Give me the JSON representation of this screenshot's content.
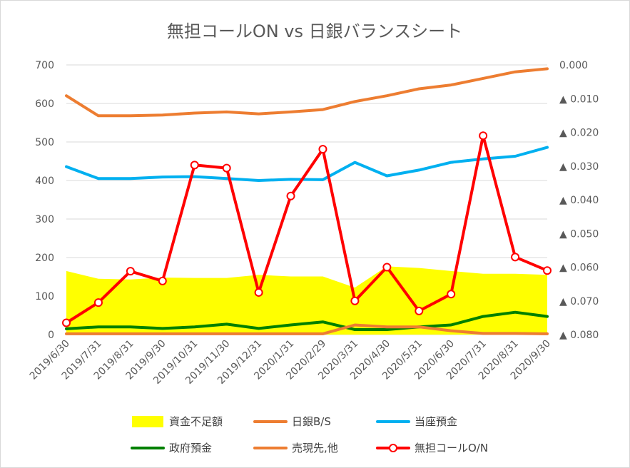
{
  "chart_data": {
    "type": "line",
    "title": "無担コールON  vs 日銀バランスシート",
    "categories": [
      "2019/6/30",
      "2019/7/31",
      "2019/8/31",
      "2019/9/30",
      "2019/10/31",
      "2019/11/30",
      "2019/12/31",
      "2020/1/31",
      "2020/2/29",
      "2020/3/31",
      "2020/4/30",
      "2020/5/31",
      "2020/6/30",
      "2020/7/31",
      "2020/8/31",
      "2020/9/30"
    ],
    "y_left": {
      "range": [
        0,
        700
      ],
      "ticks": [
        "0",
        "100",
        "200",
        "300",
        "400",
        "500",
        "600",
        "700"
      ]
    },
    "y_right": {
      "range": [
        0.0,
        -0.08
      ],
      "ticks": [
        "0.000",
        "▲ 0.010",
        "▲ 0.020",
        "▲ 0.030",
        "▲ 0.040",
        "▲ 0.050",
        "▲ 0.060",
        "▲ 0.070",
        "▲ 0.080"
      ]
    },
    "grid": true,
    "legend_position": "bottom",
    "series": [
      {
        "name": "資金不足額",
        "kind": "area",
        "axis": "left",
        "color": "#FFFF00",
        "values": [
          165,
          145,
          143,
          148,
          147,
          147,
          155,
          151,
          151,
          122,
          177,
          173,
          165,
          158,
          158,
          155
        ]
      },
      {
        "name": "日銀B/S",
        "kind": "line",
        "axis": "left",
        "color": "#ED7D31",
        "values": [
          620,
          568,
          568,
          570,
          575,
          578,
          573,
          578,
          584,
          605,
          620,
          638,
          648,
          665,
          682,
          690
        ]
      },
      {
        "name": "当座預金",
        "kind": "line",
        "axis": "left",
        "color": "#00B0F0",
        "values": [
          436,
          405,
          405,
          409,
          410,
          405,
          400,
          403,
          402,
          447,
          412,
          427,
          447,
          456,
          463,
          486
        ]
      },
      {
        "name": "政府預金",
        "kind": "line",
        "axis": "left",
        "color": "#008000",
        "values": [
          15,
          20,
          20,
          16,
          20,
          27,
          16,
          25,
          33,
          13,
          13,
          20,
          25,
          47,
          58,
          47
        ]
      },
      {
        "name": "売現先,他",
        "kind": "line",
        "axis": "left",
        "color": "#ED7D31",
        "values": [
          2,
          2,
          2,
          2,
          2,
          2,
          2,
          2,
          2,
          25,
          20,
          20,
          10,
          3,
          3,
          2
        ]
      },
      {
        "name": "無担コールO/N",
        "kind": "line-marker",
        "axis": "right",
        "color": "#FF0000",
        "values": [
          -0.0765,
          -0.0705,
          -0.0612,
          -0.0641,
          -0.0297,
          -0.0306,
          -0.0675,
          -0.0389,
          -0.025,
          -0.07,
          -0.06,
          -0.073,
          -0.068,
          -0.021,
          -0.057,
          -0.061
        ]
      }
    ]
  }
}
